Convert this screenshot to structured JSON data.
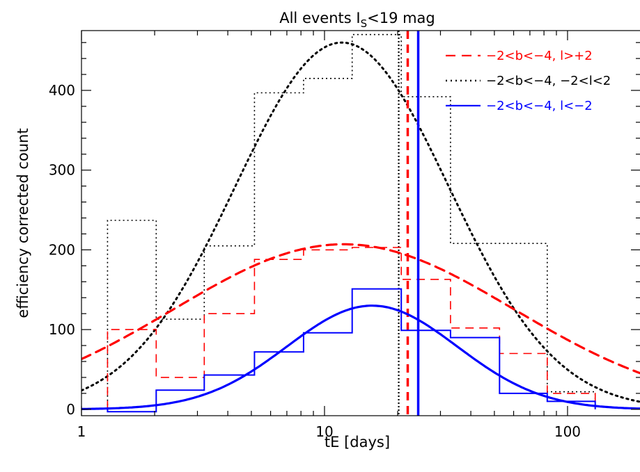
{
  "chart_data": {
    "type": "line",
    "title": "All events I",
    "title_sub": "S",
    "title_suffix": "<19 mag",
    "xlabel": "tE [days]",
    "ylabel": "efficiency corrected count",
    "xscale": "log",
    "xlim": [
      1,
      200
    ],
    "ylim": [
      -8,
      475
    ],
    "x_ticks": [
      {
        "value": 1,
        "label": "1"
      },
      {
        "value": 10,
        "label": "10"
      },
      {
        "value": 100,
        "label": "100"
      }
    ],
    "y_ticks": [
      {
        "value": 0,
        "label": "0"
      },
      {
        "value": 100,
        "label": "100"
      },
      {
        "value": 200,
        "label": "200"
      },
      {
        "value": 300,
        "label": "300"
      },
      {
        "value": 400,
        "label": "400"
      }
    ],
    "grid": false,
    "legend_position": "top-right",
    "series": [
      {
        "name": "−2<b<−4, l>+2",
        "color": "#ff0000",
        "dash": "dashed",
        "histogram": {
          "edges": [
            1.28,
            2.03,
            3.2,
            5.15,
            8.2,
            13.0,
            20.7,
            33.0,
            52.5,
            82.5,
            130
          ],
          "values": [
            100,
            40,
            120,
            188,
            200,
            203,
            163,
            102,
            70,
            20
          ]
        },
        "fit": {
          "amplitude": 207,
          "peak_x": 12.0,
          "sigma_log10": 0.7
        },
        "mean_x": 22.0
      },
      {
        "name": "−2<b<−4, −2<l<2",
        "color": "#000000",
        "dash": "dotted",
        "histogram": {
          "edges": [
            1.28,
            2.03,
            3.2,
            5.15,
            8.2,
            13.0,
            20.7,
            33.0,
            52.5,
            82.5,
            130
          ],
          "values": [
            237,
            113,
            205,
            397,
            415,
            470,
            392,
            208,
            208,
            22
          ]
        },
        "fit": {
          "amplitude": 460,
          "peak_x": 11.8,
          "sigma_log10": 0.44
        },
        "mean_x": 20.2
      },
      {
        "name": "−2<b<−4, l<−2",
        "color": "#0000ff",
        "dash": "solid",
        "histogram": {
          "edges": [
            1.28,
            2.03,
            3.2,
            5.15,
            8.2,
            13.0,
            20.7,
            33.0,
            52.5,
            82.5,
            130
          ],
          "values": [
            -3,
            24,
            43,
            72,
            96,
            151,
            99,
            90,
            20,
            10
          ]
        },
        "fit": {
          "amplitude": 130,
          "peak_x": 15.7,
          "sigma_log10": 0.35
        },
        "mean_x": 24.3
      }
    ]
  }
}
